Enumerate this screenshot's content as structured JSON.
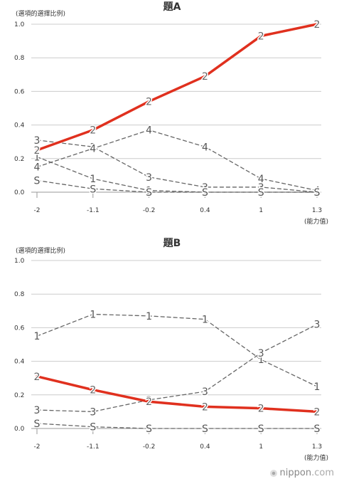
{
  "watermark": {
    "brand": "nippon",
    "domain": ".com",
    "icon": "nippon-logo-icon"
  },
  "colors": {
    "correct": "#e0301e",
    "distractor": "#666666",
    "grid": "#cccccc",
    "axis": "#555555"
  },
  "chart_data": [
    {
      "type": "line",
      "title": "題A",
      "ylabel": "(選項的選擇比例)",
      "xlabel": "(能力值)",
      "categories": [
        "-2",
        "-1.1",
        "-0.2",
        "0.4",
        "1",
        "1.3"
      ],
      "ylim": [
        0,
        1.0
      ],
      "yticks": [
        "0.0",
        "0.2",
        "0.4",
        "0.6",
        "0.8",
        "1.0"
      ],
      "grid": true,
      "series": [
        {
          "name": "2",
          "highlight": true,
          "values": [
            0.25,
            0.37,
            0.54,
            0.69,
            0.93,
            1.0
          ]
        },
        {
          "name": "3",
          "highlight": false,
          "values": [
            0.31,
            0.27,
            0.09,
            0.03,
            0.03,
            0.0
          ]
        },
        {
          "name": "4",
          "highlight": false,
          "values": [
            0.15,
            0.26,
            0.37,
            0.27,
            0.08,
            0.01
          ]
        },
        {
          "name": "1",
          "highlight": false,
          "values": [
            0.21,
            0.08,
            0.01,
            0.0,
            0.0,
            0.0
          ]
        },
        {
          "name": "S",
          "highlight": false,
          "values": [
            0.07,
            0.02,
            0.0,
            0.0,
            0.0,
            0.0
          ]
        }
      ]
    },
    {
      "type": "line",
      "title": "題B",
      "ylabel": "(選項的選擇比例)",
      "xlabel": "(能力值)",
      "categories": [
        "-2",
        "-1.1",
        "-0.2",
        "0.4",
        "1",
        "1.3"
      ],
      "ylim": [
        0,
        1.0
      ],
      "yticks": [
        "0.0",
        "0.2",
        "0.4",
        "0.6",
        "0.8",
        "1.0"
      ],
      "grid": true,
      "series": [
        {
          "name": "2",
          "highlight": true,
          "values": [
            0.31,
            0.23,
            0.16,
            0.13,
            0.12,
            0.1
          ]
        },
        {
          "name": "1",
          "highlight": false,
          "values": [
            0.55,
            0.68,
            0.67,
            0.65,
            0.41,
            0.25
          ]
        },
        {
          "name": "3",
          "highlight": false,
          "values": [
            0.11,
            0.1,
            0.17,
            0.22,
            0.45,
            0.62
          ]
        },
        {
          "name": "S",
          "highlight": false,
          "values": [
            0.03,
            0.01,
            0.0,
            0.0,
            0.0,
            0.0
          ]
        }
      ]
    }
  ]
}
